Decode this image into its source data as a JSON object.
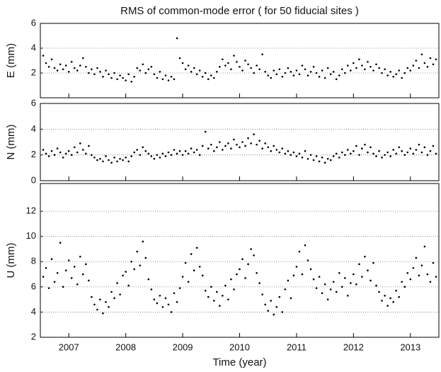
{
  "chart_data": [
    {
      "type": "scatter",
      "title": "RMS of common-mode error  ( for 50 fiducial sites )",
      "y_label": "E (mm)",
      "color": "#000000",
      "xlim": [
        2006.5,
        2013.5
      ],
      "xticks": [
        2007,
        2008,
        2009,
        2010,
        2011,
        2012,
        2013
      ],
      "xtick_labels": false,
      "ylim": [
        0,
        6
      ],
      "yticks": [
        2,
        4,
        6
      ],
      "grid": true,
      "x": [
        2006.55,
        2006.6,
        2006.65,
        2006.7,
        2006.75,
        2006.8,
        2006.85,
        2006.9,
        2006.95,
        2007.0,
        2007.05,
        2007.1,
        2007.15,
        2007.2,
        2007.25,
        2007.3,
        2007.35,
        2007.4,
        2007.45,
        2007.5,
        2007.55,
        2007.6,
        2007.65,
        2007.7,
        2007.75,
        2007.8,
        2007.85,
        2007.9,
        2007.95,
        2008.0,
        2008.05,
        2008.1,
        2008.15,
        2008.2,
        2008.25,
        2008.3,
        2008.35,
        2008.4,
        2008.45,
        2008.5,
        2008.55,
        2008.6,
        2008.65,
        2008.7,
        2008.75,
        2008.8,
        2008.85,
        2008.9,
        2008.95,
        2009.0,
        2009.05,
        2009.1,
        2009.15,
        2009.2,
        2009.25,
        2009.3,
        2009.35,
        2009.4,
        2009.45,
        2009.5,
        2009.55,
        2009.6,
        2009.65,
        2009.7,
        2009.75,
        2009.8,
        2009.85,
        2009.9,
        2009.95,
        2010.0,
        2010.05,
        2010.1,
        2010.15,
        2010.2,
        2010.25,
        2010.3,
        2010.35,
        2010.4,
        2010.45,
        2010.5,
        2010.55,
        2010.6,
        2010.65,
        2010.7,
        2010.75,
        2010.8,
        2010.85,
        2010.9,
        2010.95,
        2011.0,
        2011.05,
        2011.1,
        2011.15,
        2011.2,
        2011.25,
        2011.3,
        2011.35,
        2011.4,
        2011.45,
        2011.5,
        2011.55,
        2011.6,
        2011.65,
        2011.7,
        2011.75,
        2011.8,
        2011.85,
        2011.9,
        2011.95,
        2012.0,
        2012.05,
        2012.1,
        2012.15,
        2012.2,
        2012.25,
        2012.3,
        2012.35,
        2012.4,
        2012.45,
        2012.5,
        2012.55,
        2012.6,
        2012.65,
        2012.7,
        2012.75,
        2012.8,
        2012.85,
        2012.9,
        2012.95,
        2013.0,
        2013.05,
        2013.1,
        2013.15,
        2013.2,
        2013.25,
        2013.3,
        2013.35,
        2013.4,
        2013.45
      ],
      "values": [
        3.4,
        2.8,
        2.5,
        3.1,
        2.4,
        2.2,
        2.7,
        2.3,
        2.6,
        2.1,
        2.9,
        2.4,
        2.2,
        2.6,
        3.2,
        2.5,
        2.0,
        2.3,
        1.9,
        2.4,
        2.1,
        1.7,
        2.2,
        1.9,
        1.6,
        2.0,
        1.5,
        1.8,
        1.6,
        1.4,
        1.9,
        1.3,
        1.7,
        2.4,
        2.2,
        2.7,
        2.0,
        2.3,
        2.5,
        1.9,
        1.6,
        2.1,
        1.5,
        1.8,
        1.4,
        1.7,
        1.5,
        4.8,
        3.2,
        2.8,
        2.3,
        2.6,
        2.1,
        2.4,
        1.9,
        2.2,
        1.7,
        2.0,
        1.5,
        1.8,
        1.6,
        2.1,
        2.5,
        3.1,
        2.6,
        2.8,
        2.3,
        3.4,
        2.9,
        2.5,
        2.2,
        3.0,
        2.7,
        2.4,
        2.0,
        2.6,
        2.3,
        3.5,
        2.1,
        1.8,
        1.6,
        2.2,
        1.9,
        2.3,
        1.7,
        2.0,
        2.4,
        2.1,
        1.8,
        2.2,
        1.9,
        2.6,
        2.3,
        1.8,
        2.1,
        2.5,
        2.0,
        1.7,
        2.2,
        1.6,
        2.4,
        1.9,
        2.1,
        1.5,
        1.8,
        2.3,
        2.0,
        2.6,
        2.2,
        2.8,
        2.4,
        3.1,
        2.6,
        2.3,
        2.9,
        2.5,
        2.2,
        2.7,
        2.4,
        2.0,
        2.3,
        1.8,
        2.1,
        1.7,
        1.9,
        2.2,
        1.6,
        2.0,
        2.4,
        2.2,
        2.6,
        3.0,
        2.4,
        3.5,
        2.8,
        2.5,
        3.2,
        2.7,
        3.1
      ]
    },
    {
      "type": "scatter",
      "y_label": "N (mm)",
      "color": "#000000",
      "xlim": [
        2006.5,
        2013.5
      ],
      "xticks": [
        2007,
        2008,
        2009,
        2010,
        2011,
        2012,
        2013
      ],
      "xtick_labels": false,
      "ylim": [
        0,
        6
      ],
      "yticks": [
        0,
        2,
        4,
        6
      ],
      "grid": true,
      "x": [
        2006.55,
        2006.6,
        2006.65,
        2006.7,
        2006.75,
        2006.8,
        2006.85,
        2006.9,
        2006.95,
        2007.0,
        2007.05,
        2007.1,
        2007.15,
        2007.2,
        2007.25,
        2007.3,
        2007.35,
        2007.4,
        2007.45,
        2007.5,
        2007.55,
        2007.6,
        2007.65,
        2007.7,
        2007.75,
        2007.8,
        2007.85,
        2007.9,
        2007.95,
        2008.0,
        2008.05,
        2008.1,
        2008.15,
        2008.2,
        2008.25,
        2008.3,
        2008.35,
        2008.4,
        2008.45,
        2008.5,
        2008.55,
        2008.6,
        2008.65,
        2008.7,
        2008.75,
        2008.8,
        2008.85,
        2008.9,
        2008.95,
        2009.0,
        2009.05,
        2009.1,
        2009.15,
        2009.2,
        2009.25,
        2009.3,
        2009.35,
        2009.4,
        2009.45,
        2009.5,
        2009.55,
        2009.6,
        2009.65,
        2009.7,
        2009.75,
        2009.8,
        2009.85,
        2009.9,
        2009.95,
        2010.0,
        2010.05,
        2010.1,
        2010.15,
        2010.2,
        2010.25,
        2010.3,
        2010.35,
        2010.4,
        2010.45,
        2010.5,
        2010.55,
        2010.6,
        2010.65,
        2010.7,
        2010.75,
        2010.8,
        2010.85,
        2010.9,
        2010.95,
        2011.0,
        2011.05,
        2011.1,
        2011.15,
        2011.2,
        2011.25,
        2011.3,
        2011.35,
        2011.4,
        2011.45,
        2011.5,
        2011.55,
        2011.6,
        2011.65,
        2011.7,
        2011.75,
        2011.8,
        2011.85,
        2011.9,
        2011.95,
        2012.0,
        2012.05,
        2012.1,
        2012.15,
        2012.2,
        2012.25,
        2012.3,
        2012.35,
        2012.4,
        2012.45,
        2012.5,
        2012.55,
        2012.6,
        2012.65,
        2012.7,
        2012.75,
        2012.8,
        2012.85,
        2012.9,
        2012.95,
        2013.0,
        2013.05,
        2013.1,
        2013.15,
        2013.2,
        2013.25,
        2013.3,
        2013.35,
        2013.4,
        2013.45
      ],
      "values": [
        2.4,
        2.1,
        1.9,
        2.3,
        2.0,
        2.5,
        2.2,
        1.8,
        2.1,
        2.3,
        2.0,
        2.6,
        2.2,
        2.9,
        2.4,
        2.1,
        2.7,
        2.0,
        1.8,
        1.6,
        1.7,
        1.5,
        1.9,
        1.6,
        1.4,
        1.8,
        1.5,
        1.7,
        1.6,
        1.8,
        1.5,
        1.9,
        2.2,
        2.4,
        2.0,
        2.6,
        2.3,
        2.1,
        1.9,
        1.7,
        2.0,
        1.8,
        2.1,
        1.9,
        2.2,
        2.0,
        2.4,
        2.1,
        2.3,
        2.0,
        2.3,
        2.1,
        2.5,
        2.2,
        2.4,
        2.0,
        2.7,
        3.8,
        2.5,
        2.8,
        2.3,
        2.6,
        3.0,
        2.4,
        2.7,
        2.9,
        2.5,
        3.2,
        2.8,
        2.6,
        3.0,
        2.7,
        3.3,
        2.9,
        3.6,
        2.8,
        3.1,
        2.5,
        2.9,
        2.6,
        2.3,
        2.7,
        2.4,
        2.2,
        2.5,
        2.1,
        2.3,
        2.0,
        2.2,
        1.9,
        2.1,
        1.8,
        2.3,
        1.7,
        2.0,
        1.6,
        1.9,
        1.5,
        1.8,
        1.4,
        1.7,
        1.6,
        1.9,
        2.1,
        1.8,
        2.2,
        2.0,
        2.4,
        2.1,
        2.3,
        2.7,
        2.0,
        2.5,
        2.8,
        2.2,
        2.6,
        2.1,
        1.9,
        2.3,
        1.8,
        2.0,
        2.2,
        1.9,
        2.4,
        2.1,
        2.6,
        2.3,
        2.0,
        2.2,
        2.5,
        2.1,
        2.4,
        2.8,
        2.2,
        2.6,
        2.0,
        2.3,
        2.7,
        2.1
      ]
    },
    {
      "type": "scatter",
      "y_label": "U (mm)",
      "x_label": "Time (year)",
      "color": "#000000",
      "xlim": [
        2006.5,
        2013.5
      ],
      "xticks": [
        2007,
        2008,
        2009,
        2010,
        2011,
        2012,
        2013
      ],
      "xtick_labels": true,
      "ylim": [
        2,
        14.2
      ],
      "yticks": [
        2,
        4,
        6,
        8,
        10,
        12
      ],
      "grid": true,
      "x": [
        2006.55,
        2006.6,
        2006.65,
        2006.7,
        2006.75,
        2006.8,
        2006.85,
        2006.9,
        2006.95,
        2007.0,
        2007.05,
        2007.1,
        2007.15,
        2007.2,
        2007.25,
        2007.3,
        2007.35,
        2007.4,
        2007.45,
        2007.5,
        2007.55,
        2007.6,
        2007.65,
        2007.7,
        2007.75,
        2007.8,
        2007.85,
        2007.9,
        2007.95,
        2008.0,
        2008.05,
        2008.1,
        2008.15,
        2008.2,
        2008.25,
        2008.3,
        2008.35,
        2008.4,
        2008.45,
        2008.5,
        2008.55,
        2008.6,
        2008.65,
        2008.7,
        2008.75,
        2008.8,
        2008.85,
        2008.9,
        2008.95,
        2009.0,
        2009.05,
        2009.1,
        2009.15,
        2009.2,
        2009.25,
        2009.3,
        2009.35,
        2009.4,
        2009.45,
        2009.5,
        2009.55,
        2009.6,
        2009.65,
        2009.7,
        2009.75,
        2009.8,
        2009.85,
        2009.9,
        2009.95,
        2010.0,
        2010.05,
        2010.1,
        2010.15,
        2010.2,
        2010.25,
        2010.3,
        2010.35,
        2010.4,
        2010.45,
        2010.5,
        2010.55,
        2010.6,
        2010.65,
        2010.7,
        2010.75,
        2010.8,
        2010.85,
        2010.9,
        2010.95,
        2011.0,
        2011.05,
        2011.1,
        2011.15,
        2011.2,
        2011.25,
        2011.3,
        2011.35,
        2011.4,
        2011.45,
        2011.5,
        2011.55,
        2011.6,
        2011.65,
        2011.7,
        2011.75,
        2011.8,
        2011.85,
        2011.9,
        2011.95,
        2012.0,
        2012.05,
        2012.1,
        2012.15,
        2012.2,
        2012.25,
        2012.3,
        2012.35,
        2012.4,
        2012.45,
        2012.5,
        2012.55,
        2012.6,
        2012.65,
        2012.7,
        2012.75,
        2012.8,
        2012.85,
        2012.9,
        2012.95,
        2013.0,
        2013.05,
        2013.1,
        2013.15,
        2013.2,
        2013.25,
        2013.3,
        2013.35,
        2013.4,
        2013.45
      ],
      "values": [
        6.8,
        7.5,
        5.9,
        8.2,
        6.4,
        7.1,
        9.5,
        6.0,
        7.3,
        8.1,
        6.7,
        7.6,
        6.2,
        8.4,
        7.0,
        7.8,
        6.5,
        5.2,
        4.6,
        4.2,
        5.0,
        3.9,
        4.8,
        4.4,
        5.6,
        5.1,
        6.3,
        5.4,
        6.9,
        7.2,
        6.1,
        8.0,
        7.4,
        8.8,
        7.7,
        9.6,
        8.3,
        6.6,
        5.8,
        5.0,
        4.7,
        5.3,
        4.4,
        5.1,
        4.6,
        4.0,
        5.5,
        4.8,
        5.9,
        6.8,
        7.9,
        6.4,
        8.6,
        7.3,
        9.1,
        7.6,
        6.9,
        5.7,
        5.2,
        6.0,
        4.9,
        5.6,
        4.5,
        5.3,
        6.1,
        5.0,
        6.6,
        5.8,
        7.0,
        7.4,
        8.2,
        6.7,
        7.8,
        9.0,
        8.5,
        7.1,
        6.3,
        5.4,
        4.6,
        4.1,
        4.9,
        3.8,
        4.4,
        5.2,
        4.0,
        5.8,
        6.5,
        5.1,
        6.9,
        7.6,
        8.8,
        7.0,
        9.3,
        8.1,
        7.4,
        6.6,
        5.9,
        6.8,
        5.5,
        6.2,
        5.0,
        5.8,
        6.4,
        5.6,
        7.1,
        6.0,
        6.7,
        5.3,
        6.3,
        7.0,
        6.2,
        7.8,
        6.8,
        8.4,
        7.3,
        6.5,
        7.9,
        6.1,
        5.6,
        4.9,
        5.3,
        4.5,
        5.1,
        4.8,
        5.7,
        5.2,
        6.4,
        6.0,
        7.1,
        6.6,
        7.5,
        8.3,
        6.9,
        7.7,
        9.2,
        7.0,
        6.4,
        7.9,
        6.8
      ]
    }
  ]
}
